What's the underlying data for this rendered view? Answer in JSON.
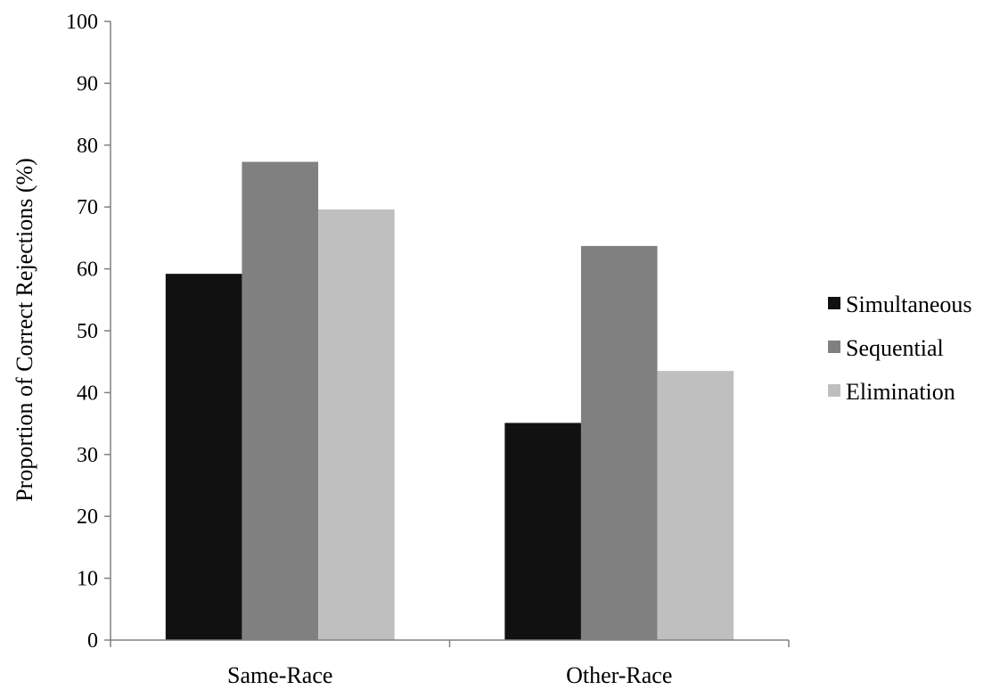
{
  "chart_data": {
    "type": "bar",
    "title": "",
    "xlabel": "",
    "ylabel": "Proportion of Correct Rejections (%)",
    "categories": [
      "Same-Race",
      "Other-Race"
    ],
    "series": [
      {
        "name": "Simultaneous",
        "color": "#111111",
        "values": [
          59.2,
          35.1
        ]
      },
      {
        "name": "Sequential",
        "color": "#808080",
        "values": [
          77.3,
          63.7
        ]
      },
      {
        "name": "Elimination",
        "color": "#bfbfbf",
        "values": [
          69.6,
          43.5
        ]
      }
    ],
    "ylim": [
      0,
      100
    ],
    "yticks": [
      "0",
      "10",
      "20",
      "30",
      "40",
      "50",
      "60",
      "70",
      "80",
      "90",
      "100"
    ],
    "grid": false,
    "legend_position": "right"
  }
}
